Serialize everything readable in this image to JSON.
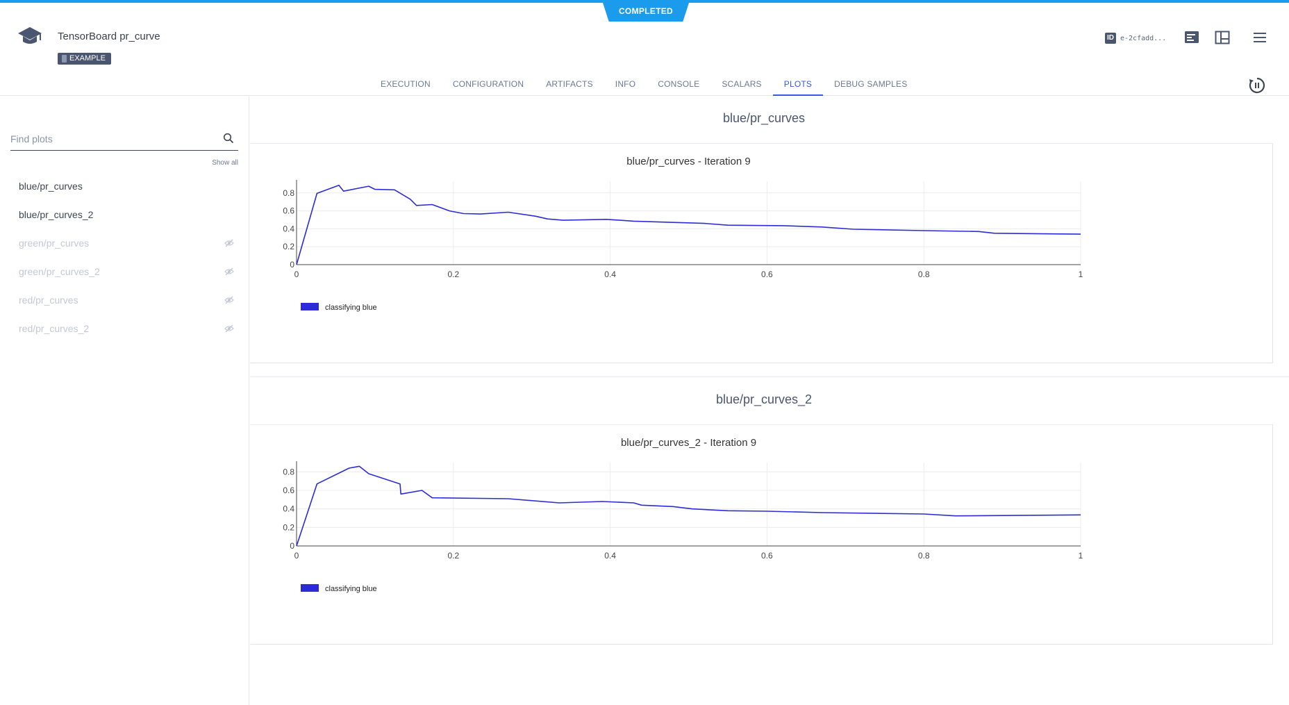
{
  "status": "COMPLETED",
  "task": {
    "title": "TensorBoard pr_curve",
    "tag": "EXAMPLE"
  },
  "header": {
    "id_label": "ID",
    "id_value": "e-2cfadd..."
  },
  "tabs": [
    "EXECUTION",
    "CONFIGURATION",
    "ARTIFACTS",
    "INFO",
    "CONSOLE",
    "SCALARS",
    "PLOTS",
    "DEBUG SAMPLES"
  ],
  "active_tab": "PLOTS",
  "sidebar": {
    "search_placeholder": "Find plots",
    "show_all": "Show all",
    "items": [
      {
        "label": "blue/pr_curves",
        "hidden": false
      },
      {
        "label": "blue/pr_curves_2",
        "hidden": false
      },
      {
        "label": "green/pr_curves",
        "hidden": true
      },
      {
        "label": "green/pr_curves_2",
        "hidden": true
      },
      {
        "label": "red/pr_curves",
        "hidden": true
      },
      {
        "label": "red/pr_curves_2",
        "hidden": true
      }
    ]
  },
  "sections": [
    {
      "title": "blue/pr_curves"
    },
    {
      "title": "blue/pr_curves_2"
    }
  ],
  "colors": {
    "accent": "#1a9bec",
    "tab_active": "#3757e8",
    "series": "#2b2bd9"
  },
  "chart_data": [
    {
      "type": "line",
      "title": "blue/pr_curves - Iteration 9",
      "xlim": [
        0,
        1
      ],
      "ylim": [
        0,
        0.93
      ],
      "xticks": [
        "0",
        "0.2",
        "0.4",
        "0.6",
        "0.8",
        "1"
      ],
      "yticks": [
        "0",
        "0.2",
        "0.4",
        "0.6",
        "0.8"
      ],
      "grid": true,
      "legend_position": "bottom-left",
      "series": [
        {
          "name": "classifying blue",
          "x": [
            0,
            0.026,
            0.054,
            0.06,
            0.092,
            0.1,
            0.125,
            0.145,
            0.153,
            0.173,
            0.195,
            0.213,
            0.235,
            0.27,
            0.305,
            0.32,
            0.34,
            0.395,
            0.43,
            0.52,
            0.55,
            0.62,
            0.67,
            0.71,
            0.8,
            0.87,
            0.89,
            1.0
          ],
          "y": [
            0,
            0.795,
            0.885,
            0.82,
            0.875,
            0.84,
            0.835,
            0.73,
            0.66,
            0.67,
            0.6,
            0.57,
            0.565,
            0.585,
            0.54,
            0.51,
            0.495,
            0.505,
            0.485,
            0.46,
            0.44,
            0.435,
            0.42,
            0.395,
            0.38,
            0.37,
            0.35,
            0.34
          ]
        }
      ]
    },
    {
      "type": "line",
      "title": "blue/pr_curves_2 - Iteration 9",
      "xlim": [
        0,
        1
      ],
      "ylim": [
        0,
        0.9
      ],
      "xticks": [
        "0",
        "0.2",
        "0.4",
        "0.6",
        "0.8",
        "1"
      ],
      "yticks": [
        "0",
        "0.2",
        "0.4",
        "0.6",
        "0.8"
      ],
      "grid": true,
      "legend_position": "bottom-left",
      "series": [
        {
          "name": "classifying blue",
          "x": [
            0,
            0.026,
            0.067,
            0.08,
            0.092,
            0.132,
            0.133,
            0.16,
            0.173,
            0.27,
            0.335,
            0.39,
            0.43,
            0.44,
            0.48,
            0.505,
            0.55,
            0.6,
            0.67,
            0.8,
            0.84,
            1.0
          ],
          "y": [
            0,
            0.67,
            0.84,
            0.86,
            0.78,
            0.67,
            0.56,
            0.6,
            0.52,
            0.51,
            0.465,
            0.48,
            0.465,
            0.44,
            0.425,
            0.4,
            0.38,
            0.375,
            0.36,
            0.345,
            0.325,
            0.335
          ]
        }
      ]
    }
  ]
}
